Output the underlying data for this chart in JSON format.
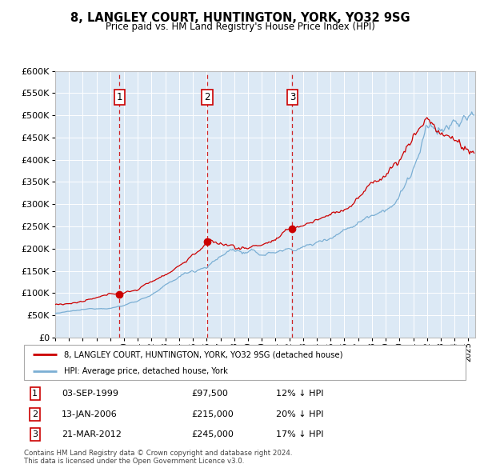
{
  "title": "8, LANGLEY COURT, HUNTINGTON, YORK, YO32 9SG",
  "subtitle": "Price paid vs. HM Land Registry's House Price Index (HPI)",
  "legend_line1": "8, LANGLEY COURT, HUNTINGTON, YORK, YO32 9SG (detached house)",
  "legend_line2": "HPI: Average price, detached house, York",
  "footer1": "Contains HM Land Registry data © Crown copyright and database right 2024.",
  "footer2": "This data is licensed under the Open Government Licence v3.0.",
  "transactions": [
    {
      "num": 1,
      "date": "03-SEP-1999",
      "price": 97500,
      "pct": "12%",
      "dir": "↓"
    },
    {
      "num": 2,
      "date": "13-JAN-2006",
      "price": 215000,
      "pct": "20%",
      "dir": "↓"
    },
    {
      "num": 3,
      "date": "21-MAR-2012",
      "price": 245000,
      "pct": "17%",
      "dir": "↓"
    }
  ],
  "sale_dates_decimal": [
    1999.67,
    2006.04,
    2012.22
  ],
  "sale_prices": [
    97500,
    215000,
    245000
  ],
  "hpi_color": "#7bafd4",
  "price_color": "#cc0000",
  "vline_color": "#cc0000",
  "plot_bg": "#dce9f5",
  "ylim": [
    0,
    600000
  ],
  "xlim_start": 1995.0,
  "xlim_end": 2025.5,
  "yticks": [
    0,
    50000,
    100000,
    150000,
    200000,
    250000,
    300000,
    350000,
    400000,
    450000,
    500000,
    550000,
    600000
  ]
}
